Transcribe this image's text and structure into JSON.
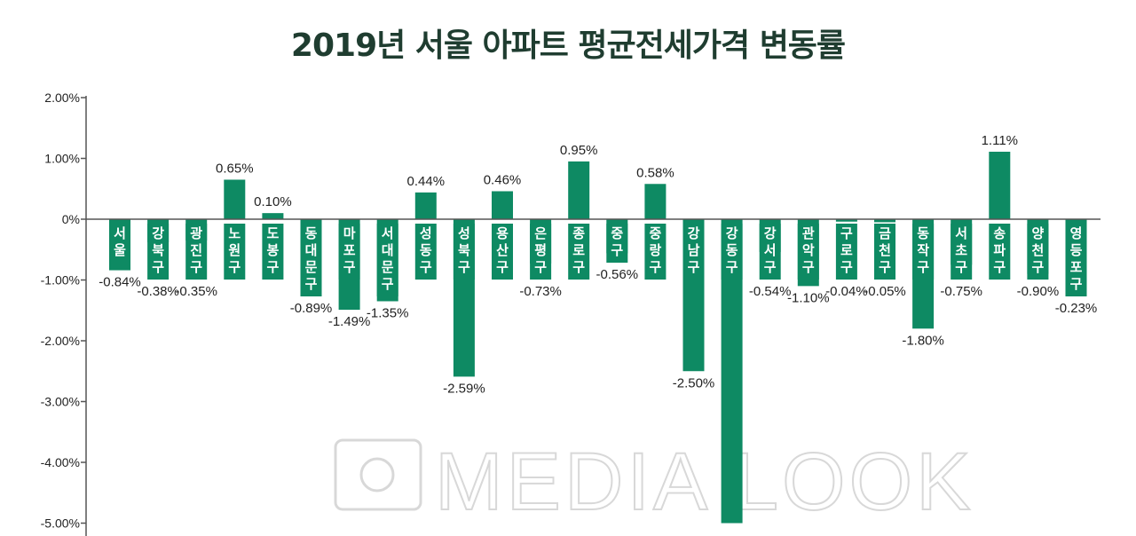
{
  "title": "2019년 서울 아파트 평균전세가격 변동률",
  "watermark": "MEDIA LOOK",
  "colors": {
    "bar": "#0e8a63",
    "axis": "#555555",
    "title": "#1f3d30"
  },
  "chart_data": {
    "type": "bar",
    "title": "2019년 서울 아파트 평균전세가격 변동률",
    "ylim": [
      -5,
      2
    ],
    "yticks": [
      2,
      1,
      0,
      -1,
      -2,
      -3,
      -4,
      -5
    ],
    "ytick_labels": [
      "2.00%",
      "1.00%",
      "0%",
      "-1.00%",
      "-2.00%",
      "-3.00%",
      "-4.00%",
      "-5.00%"
    ],
    "categories": [
      "서울",
      "강북구",
      "광진구",
      "노원구",
      "도봉구",
      "동대문구",
      "마포구",
      "서대문구",
      "성동구",
      "성북구",
      "용산구",
      "은평구",
      "종로구",
      "중구",
      "중랑구",
      "강남구",
      "강동구",
      "강서구",
      "관악구",
      "구로구",
      "금천구",
      "동작구",
      "서초구",
      "송파구",
      "양천구",
      "영등포구"
    ],
    "values": [
      -0.84,
      -0.38,
      -0.35,
      0.65,
      0.1,
      -0.89,
      -1.49,
      -1.35,
      0.44,
      -2.59,
      0.46,
      -0.73,
      0.95,
      -0.56,
      0.58,
      -2.5,
      -5.0,
      -0.54,
      -1.1,
      -0.04,
      -0.05,
      -1.8,
      -0.75,
      1.11,
      -0.9,
      -0.23
    ],
    "value_labels": [
      "-0.84%",
      "-0.38%",
      "-0.35%",
      "0.65%",
      "0.10%",
      "-0.89%",
      "-1.49%",
      "-1.35%",
      "0.44%",
      "-2.59%",
      "0.46%",
      "-0.73%",
      "0.95%",
      "-0.56%",
      "0.58%",
      "-2.50%",
      "",
      "-0.54%",
      "-1.10%",
      "-0.04%",
      "-0.05%",
      "-1.80%",
      "-0.75%",
      "1.11%",
      "-0.90%",
      "-0.23%"
    ],
    "grid": false,
    "legend": "none"
  }
}
